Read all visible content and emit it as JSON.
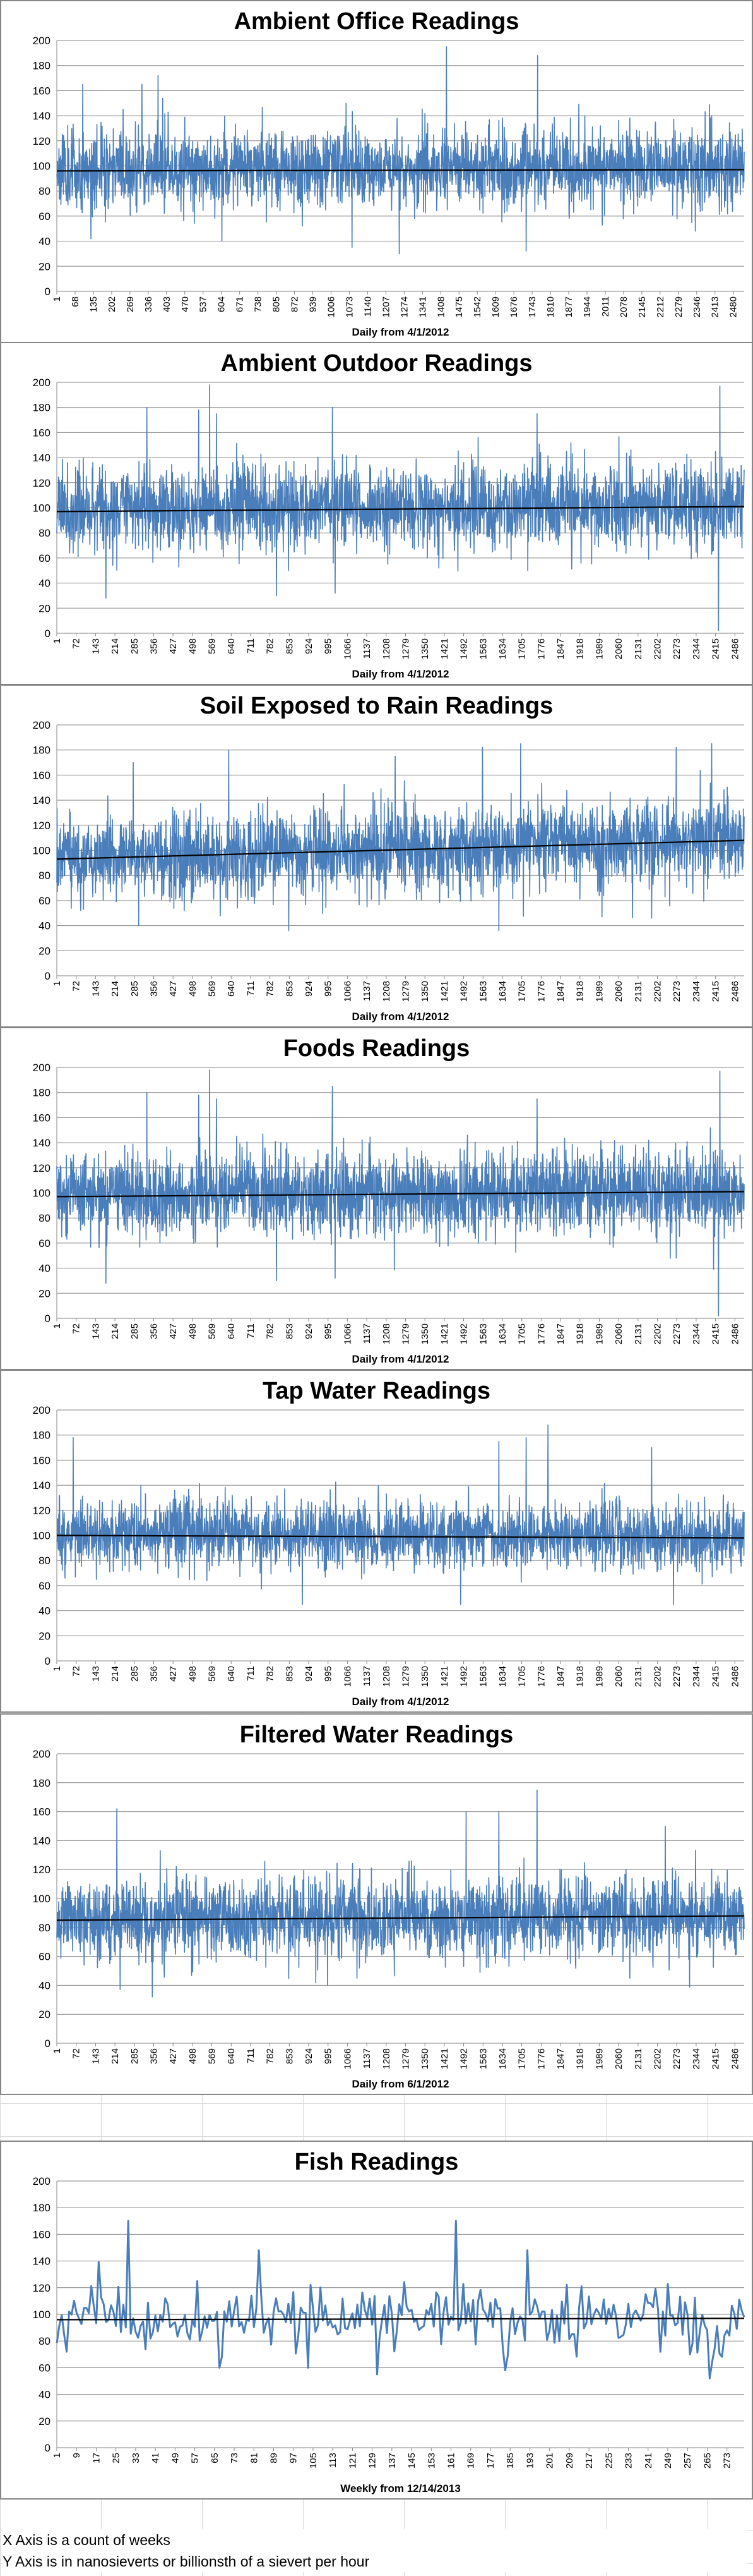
{
  "notes": {
    "x_axis": "X Axis is a count of weeks",
    "y_axis": "Y Axis is in nanosieverts or billionsth of a sievert per hour"
  },
  "chart_data": [
    {
      "type": "line",
      "title": "Ambient Office Readings",
      "xlabel": "Daily from 4/1/2012",
      "ylabel": "",
      "ylim": [
        0,
        200
      ],
      "ytick_step": 20,
      "x_count": 2520,
      "x_ticks": [
        "1",
        "68",
        "135",
        "202",
        "269",
        "336",
        "403",
        "470",
        "537",
        "604",
        "671",
        "738",
        "805",
        "872",
        "939",
        "1006",
        "1073",
        "1140",
        "1207",
        "1274",
        "1341",
        "1408",
        "1475",
        "1542",
        "1609",
        "1676",
        "1743",
        "1810",
        "1877",
        "1944",
        "2011",
        "2078",
        "2145",
        "2212",
        "2279",
        "2346",
        "2413",
        "2480"
      ],
      "series_color": "#4a7ebb",
      "baseline": 98,
      "amplitude": 20,
      "spikes": [
        [
          95,
          165
        ],
        [
          243,
          145
        ],
        [
          312,
          165
        ],
        [
          371,
          172
        ],
        [
          1060,
          150
        ],
        [
          1428,
          195
        ],
        [
          1762,
          188
        ],
        [
          2400,
          140
        ]
      ],
      "dips": [
        [
          125,
          42
        ],
        [
          605,
          40
        ],
        [
          1082,
          35
        ],
        [
          1255,
          30
        ],
        [
          1720,
          32
        ],
        [
          2340,
          48
        ]
      ],
      "trend": [
        96,
        97
      ],
      "seed": 11
    },
    {
      "type": "line",
      "title": "Ambient Outdoor Readings",
      "xlabel": "Daily from 4/1/2012",
      "ylabel": "",
      "ylim": [
        0,
        200
      ],
      "ytick_step": 20,
      "x_count": 2520,
      "x_ticks": [
        "1",
        "72",
        "143",
        "214",
        "285",
        "356",
        "427",
        "498",
        "569",
        "640",
        "711",
        "782",
        "853",
        "924",
        "995",
        "1066",
        "1137",
        "1208",
        "1279",
        "1350",
        "1421",
        "1492",
        "1563",
        "1634",
        "1705",
        "1776",
        "1847",
        "1918",
        "1989",
        "2060",
        "2131",
        "2202",
        "2273",
        "2344",
        "2415",
        "2486"
      ],
      "series_color": "#4a7ebb",
      "baseline": 100,
      "amplitude": 22,
      "spikes": [
        [
          330,
          180
        ],
        [
          520,
          178
        ],
        [
          560,
          198
        ],
        [
          585,
          175
        ],
        [
          1010,
          180
        ],
        [
          1760,
          175
        ],
        [
          2430,
          197
        ]
      ],
      "dips": [
        [
          180,
          28
        ],
        [
          805,
          30
        ],
        [
          1020,
          32
        ],
        [
          2425,
          2
        ]
      ],
      "trend": [
        97,
        101
      ],
      "seed": 23
    },
    {
      "type": "line",
      "title": "Soil Exposed to Rain Readings",
      "xlabel": "Daily from 4/1/2012",
      "ylabel": "",
      "ylim": [
        0,
        200
      ],
      "ytick_step": 20,
      "x_count": 2520,
      "x_ticks": [
        "1",
        "72",
        "143",
        "214",
        "285",
        "356",
        "427",
        "498",
        "569",
        "640",
        "711",
        "782",
        "853",
        "924",
        "995",
        "1066",
        "1137",
        "1208",
        "1279",
        "1350",
        "1421",
        "1492",
        "1563",
        "1634",
        "1705",
        "1776",
        "1847",
        "1918",
        "1989",
        "2060",
        "2131",
        "2202",
        "2273",
        "2344",
        "2415",
        "2486"
      ],
      "series_color": "#4a7ebb",
      "baseline": 100,
      "amplitude": 22,
      "spikes": [
        [
          280,
          170
        ],
        [
          630,
          180
        ],
        [
          1240,
          175
        ],
        [
          1560,
          182
        ],
        [
          1700,
          185
        ],
        [
          2270,
          182
        ],
        [
          2400,
          185
        ]
      ],
      "dips": [
        [
          300,
          40
        ],
        [
          850,
          36
        ],
        [
          1620,
          36
        ],
        [
          2180,
          46
        ]
      ],
      "trend": [
        93,
        108
      ],
      "seed": 37
    },
    {
      "type": "line",
      "title": "Foods Readings",
      "xlabel": "Daily from 4/1/2012",
      "ylabel": "",
      "ylim": [
        0,
        200
      ],
      "ytick_step": 20,
      "x_count": 2520,
      "x_ticks": [
        "1",
        "72",
        "143",
        "214",
        "285",
        "356",
        "427",
        "498",
        "569",
        "640",
        "711",
        "782",
        "853",
        "924",
        "995",
        "1066",
        "1137",
        "1208",
        "1279",
        "1350",
        "1421",
        "1492",
        "1563",
        "1634",
        "1705",
        "1776",
        "1847",
        "1918",
        "1989",
        "2060",
        "2131",
        "2202",
        "2273",
        "2344",
        "2415",
        "2486"
      ],
      "series_color": "#4a7ebb",
      "baseline": 100,
      "amplitude": 22,
      "spikes": [
        [
          330,
          180
        ],
        [
          520,
          178
        ],
        [
          560,
          198
        ],
        [
          585,
          175
        ],
        [
          1010,
          185
        ],
        [
          1760,
          175
        ],
        [
          2430,
          197
        ]
      ],
      "dips": [
        [
          180,
          28
        ],
        [
          805,
          30
        ],
        [
          1020,
          32
        ],
        [
          2425,
          2
        ]
      ],
      "trend": [
        97,
        101
      ],
      "seed": 53
    },
    {
      "type": "line",
      "title": "Tap Water Readings",
      "xlabel": "Daily from 4/1/2012",
      "ylabel": "",
      "ylim": [
        0,
        200
      ],
      "ytick_step": 20,
      "x_count": 2520,
      "x_ticks": [
        "1",
        "72",
        "143",
        "214",
        "285",
        "356",
        "427",
        "498",
        "569",
        "640",
        "711",
        "782",
        "853",
        "924",
        "995",
        "1066",
        "1137",
        "1208",
        "1279",
        "1350",
        "1421",
        "1492",
        "1563",
        "1634",
        "1705",
        "1776",
        "1847",
        "1918",
        "1989",
        "2060",
        "2131",
        "2202",
        "2273",
        "2344",
        "2415",
        "2486"
      ],
      "series_color": "#4a7ebb",
      "baseline": 100,
      "amplitude": 18,
      "spikes": [
        [
          60,
          178
        ],
        [
          1620,
          175
        ],
        [
          1720,
          178
        ],
        [
          1800,
          188
        ],
        [
          2180,
          170
        ]
      ],
      "dips": [
        [
          900,
          45
        ],
        [
          1480,
          45
        ],
        [
          2260,
          45
        ]
      ],
      "trend": [
        100,
        98
      ],
      "seed": 71
    },
    {
      "type": "line",
      "title": "Filtered Water Readings",
      "xlabel": "Daily from 6/1/2012",
      "ylabel": "",
      "ylim": [
        0,
        200
      ],
      "ytick_step": 20,
      "x_count": 2520,
      "x_ticks": [
        "1",
        "72",
        "143",
        "214",
        "285",
        "356",
        "427",
        "498",
        "569",
        "640",
        "711",
        "782",
        "853",
        "924",
        "995",
        "1066",
        "1137",
        "1208",
        "1279",
        "1350",
        "1421",
        "1492",
        "1563",
        "1634",
        "1705",
        "1776",
        "1847",
        "1918",
        "1989",
        "2060",
        "2131",
        "2202",
        "2273",
        "2344",
        "2415",
        "2486"
      ],
      "series_color": "#4a7ebb",
      "baseline": 87,
      "amplitude": 18,
      "spikes": [
        [
          220,
          162
        ],
        [
          1500,
          160
        ],
        [
          1620,
          160
        ],
        [
          1760,
          175
        ],
        [
          2230,
          150
        ]
      ],
      "dips": [
        [
          350,
          32
        ],
        [
          1100,
          45
        ],
        [
          2100,
          45
        ]
      ],
      "trend": [
        85,
        88
      ],
      "seed": 89
    },
    {
      "type": "line",
      "title": "Fish Readings",
      "xlabel": "Weekly from 12/14/2013",
      "ylabel": "",
      "ylim": [
        0,
        200
      ],
      "ytick_step": 20,
      "x_count": 280,
      "x_ticks": [
        "1",
        "9",
        "17",
        "25",
        "33",
        "41",
        "49",
        "57",
        "65",
        "73",
        "81",
        "89",
        "97",
        "105",
        "113",
        "121",
        "129",
        "137",
        "145",
        "153",
        "161",
        "169",
        "177",
        "185",
        "193",
        "201",
        "209",
        "217",
        "225",
        "233",
        "241",
        "249",
        "257",
        "265",
        "273"
      ],
      "series_color": "#4a7ebb",
      "baseline": 97,
      "amplitude": 16,
      "spikes": [
        [
          29,
          170
        ],
        [
          82,
          148
        ],
        [
          162,
          170
        ],
        [
          191,
          148
        ]
      ],
      "dips": [
        [
          4,
          72
        ],
        [
          66,
          60
        ],
        [
          102,
          60
        ],
        [
          130,
          55
        ],
        [
          182,
          58
        ],
        [
          265,
          52
        ]
      ],
      "trend": [
        96,
        97
      ],
      "seed": 101
    }
  ]
}
